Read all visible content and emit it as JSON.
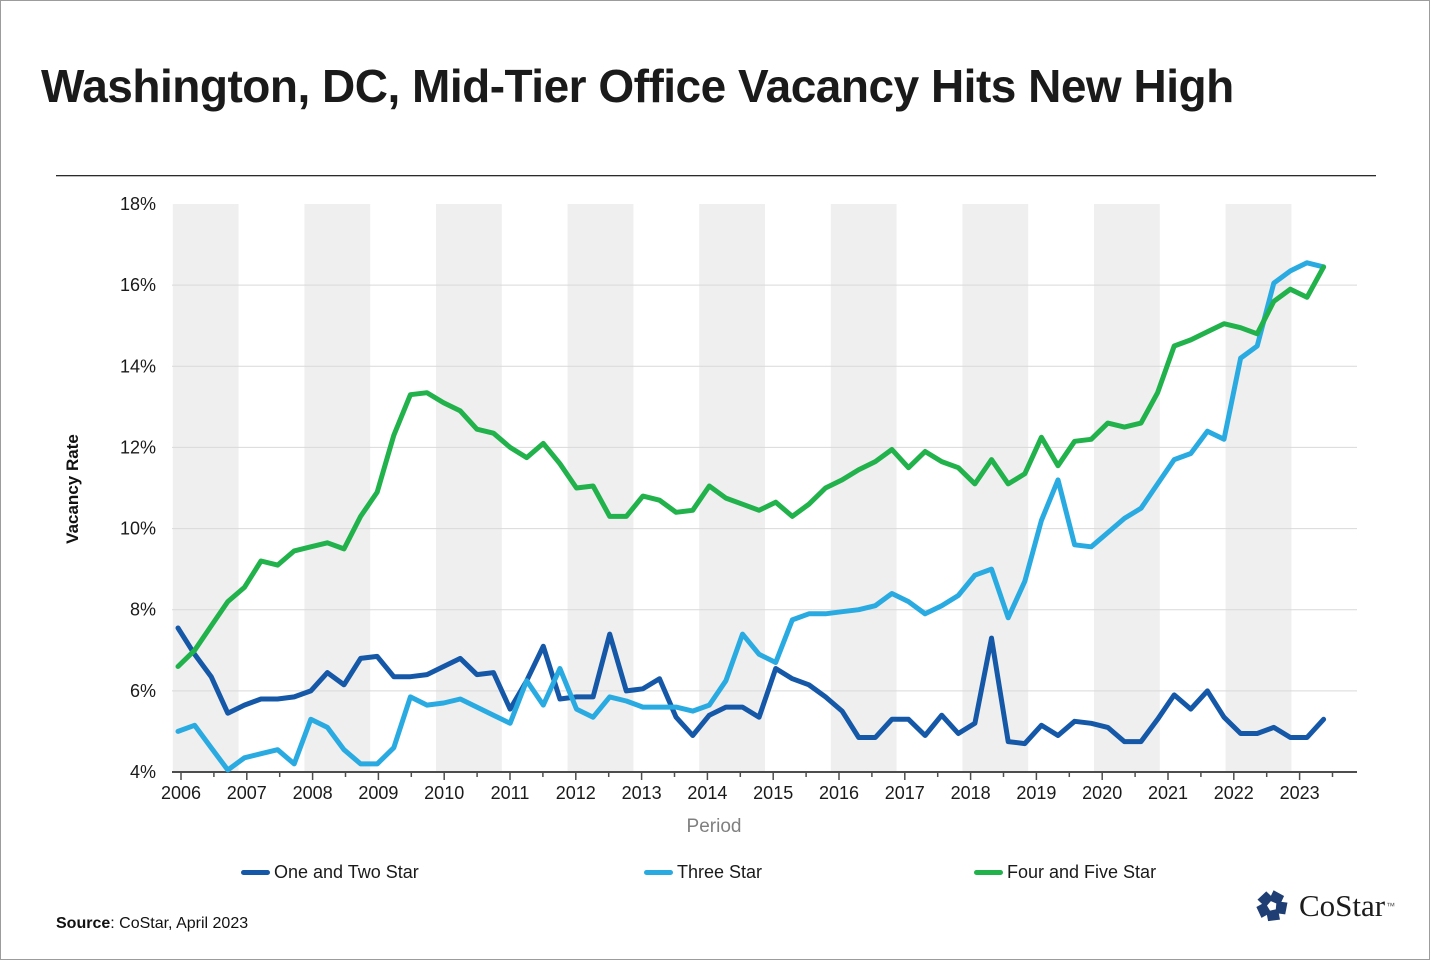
{
  "header": {
    "title": "Washington, DC, Mid-Tier Office Vacancy Hits New High"
  },
  "source": {
    "label": "Source",
    "text": ": CoStar, April 2023"
  },
  "logo": {
    "name": "CoStar",
    "trademark": "™",
    "icon": "costar-pinwheel-icon",
    "color": "#1f3e73"
  },
  "chart_data": {
    "type": "line",
    "title": "Washington, DC, Mid-Tier Office Vacancy Hits New High",
    "frequency": "quarterly",
    "start_period": "2006 Q1",
    "end_period": "2023 Q2",
    "grid": "horizontal-on, alternating vertical year bands",
    "band_color": "#efefef",
    "gridline_color": "#d9d9d9",
    "legend_position": "bottom",
    "x_axis": {
      "label": "Period",
      "years": [
        2006,
        2007,
        2008,
        2009,
        2010,
        2011,
        2012,
        2013,
        2014,
        2015,
        2016,
        2017,
        2018,
        2019,
        2020,
        2021,
        2022,
        2023
      ]
    },
    "y_axis": {
      "label": "Vacancy Rate",
      "min": 4,
      "max": 18,
      "tick_values": [
        18,
        16,
        14,
        12,
        10,
        8,
        6,
        4
      ],
      "tick_labels": [
        "18%",
        "16%",
        "14%",
        "12%",
        "10%",
        "8%",
        "6%",
        "4%"
      ]
    },
    "series": [
      {
        "name": "One and Two Star",
        "color": "#1558a8",
        "values": [
          7.55,
          6.9,
          6.35,
          5.45,
          5.65,
          5.8,
          5.8,
          5.85,
          6.0,
          6.45,
          6.15,
          6.8,
          6.85,
          6.35,
          6.35,
          6.4,
          6.6,
          6.8,
          6.4,
          6.45,
          5.55,
          6.25,
          7.1,
          5.8,
          5.85,
          5.85,
          7.4,
          6.0,
          6.05,
          6.3,
          5.35,
          4.9,
          5.4,
          5.6,
          5.6,
          5.35,
          6.55,
          6.3,
          6.15,
          5.85,
          5.5,
          4.85,
          4.85,
          5.3,
          5.3,
          4.9,
          5.4,
          4.95,
          5.2,
          7.3,
          4.75,
          4.7,
          5.15,
          4.9,
          5.25,
          5.2,
          5.1,
          4.75,
          4.75,
          5.3,
          5.9,
          5.55,
          6.0,
          5.35,
          4.95,
          4.95,
          5.1,
          4.85,
          4.85,
          5.3
        ]
      },
      {
        "name": "Three Star",
        "color": "#29abe2",
        "values": [
          5.0,
          5.15,
          4.6,
          4.05,
          4.35,
          4.45,
          4.55,
          4.2,
          5.3,
          5.1,
          4.55,
          4.2,
          4.2,
          4.6,
          5.85,
          5.65,
          5.7,
          5.8,
          5.6,
          5.4,
          5.2,
          6.25,
          5.65,
          6.55,
          5.55,
          5.35,
          5.85,
          5.75,
          5.6,
          5.6,
          5.6,
          5.5,
          5.65,
          6.25,
          7.4,
          6.9,
          6.7,
          7.75,
          7.9,
          7.9,
          7.95,
          8.0,
          8.1,
          8.4,
          8.2,
          7.9,
          8.1,
          8.35,
          8.85,
          9.0,
          7.8,
          8.7,
          10.2,
          11.2,
          9.6,
          9.55,
          9.9,
          10.25,
          10.5,
          11.1,
          11.7,
          11.85,
          12.4,
          12.2,
          14.2,
          14.5,
          16.05,
          16.35,
          16.55,
          16.45
        ]
      },
      {
        "name": "Four and Five Star",
        "color": "#21b24c",
        "values": [
          6.6,
          7.0,
          7.6,
          8.2,
          8.55,
          9.2,
          9.1,
          9.45,
          9.55,
          9.65,
          9.5,
          10.3,
          10.9,
          12.3,
          13.3,
          13.35,
          13.1,
          12.9,
          12.45,
          12.35,
          12.0,
          11.75,
          12.1,
          11.6,
          11.0,
          11.05,
          10.3,
          10.3,
          10.8,
          10.7,
          10.4,
          10.45,
          11.05,
          10.75,
          10.6,
          10.45,
          10.65,
          10.3,
          10.6,
          11.0,
          11.2,
          11.45,
          11.65,
          11.95,
          11.5,
          11.9,
          11.65,
          11.5,
          11.1,
          11.7,
          11.1,
          11.35,
          12.25,
          11.55,
          12.15,
          12.2,
          12.6,
          12.5,
          12.6,
          13.35,
          14.5,
          14.65,
          14.85,
          15.05,
          14.95,
          14.8,
          15.6,
          15.9,
          15.7,
          16.45
        ]
      }
    ]
  },
  "legend": {
    "items": [
      {
        "label": "One and Two Star"
      },
      {
        "label": "Three Star"
      },
      {
        "label": "Four and Five Star"
      }
    ]
  }
}
